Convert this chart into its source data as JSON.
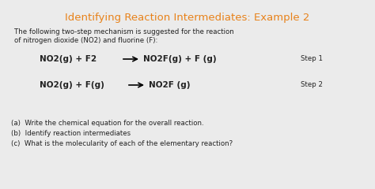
{
  "title": "Identifying Reaction Intermediates: Example 2",
  "title_color": "#E8821A",
  "background_color": "#EBEBEB",
  "body_text_color": "#222222",
  "intro_line1": "The following two-step mechanism is suggested for the reaction",
  "intro_line2": "of nitrogen dioxide (NO2) and fluorine (F):",
  "step1_left": "NO2(g) + F2",
  "step1_right": "NO2F(g) + F (g)",
  "step1_label": "Step 1",
  "step2_left": "NO2(g) + F(g)",
  "step2_right": "NO2F (g)",
  "step2_label": "Step 2",
  "qa": "(a)  Write the chemical equation for the overall reaction.",
  "qb": "(b)  Identify reaction intermediates",
  "qc": "(c)  What is the molecularity of each of the elementary reaction?",
  "font_size_title": 9.5,
  "font_size_body": 6.2,
  "font_size_equations": 7.5,
  "font_size_steps": 6.2
}
